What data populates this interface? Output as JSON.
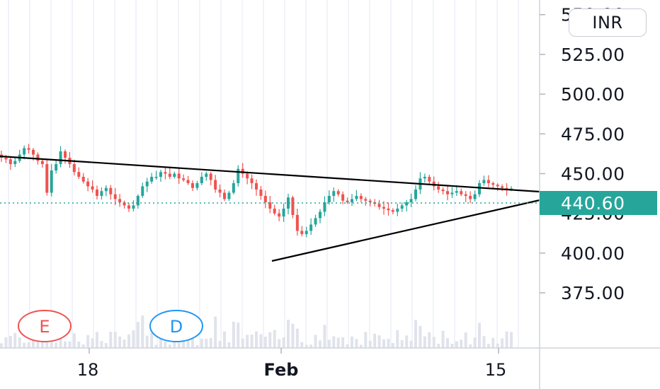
{
  "currency": "INR",
  "colors": {
    "up": "#26a69a",
    "down": "#ef5350",
    "last_price": "#26a69a",
    "trendline": "#000000",
    "event_earnings": "#ef5350",
    "event_dividend": "#2196f3",
    "volume": "#e0e3eb",
    "grid": "#f0f3fa"
  },
  "events": [
    {
      "letter": "E",
      "kind": "earnings",
      "x_label_near": "Jan 12"
    },
    {
      "letter": "D",
      "kind": "dividend",
      "x_label_near": "Jan 23"
    }
  ],
  "chart_data": {
    "type": "candlestick",
    "title": "",
    "ylabel": "",
    "xlabel": "",
    "ylim": [
      355,
      557
    ],
    "y_ticks": [
      "550.00",
      "525.00",
      "500.00",
      "475.00",
      "450.00",
      "425.00",
      "400.00",
      "375.00"
    ],
    "x_ticks": [
      {
        "label": "18",
        "bold": false
      },
      {
        "label": "Feb",
        "bold": true
      },
      {
        "label": "15",
        "bold": false
      }
    ],
    "last_price": "440.60",
    "trendlines": [
      {
        "name": "upper",
        "from": 466,
        "to": 446
      },
      {
        "name": "lower",
        "from": 409,
        "to": 442
      }
    ],
    "close_series": [
      460,
      459,
      456,
      458,
      462,
      466,
      465,
      462,
      458,
      456,
      438,
      452,
      456,
      464,
      460,
      456,
      451,
      448,
      445,
      442,
      440,
      436,
      439,
      441,
      437,
      434,
      432,
      430,
      428,
      430,
      436,
      442,
      445,
      448,
      448,
      451,
      450,
      448,
      450,
      447,
      446,
      444,
      441,
      444,
      448,
      450,
      446,
      440,
      438,
      434,
      438,
      444,
      453,
      450,
      447,
      444,
      440,
      436,
      432,
      428,
      425,
      423,
      428,
      435,
      424,
      414,
      412,
      414,
      418,
      422,
      426,
      432,
      436,
      439,
      437,
      433,
      432,
      434,
      436,
      434,
      433,
      432,
      431,
      429,
      428,
      427,
      426,
      428,
      430,
      432,
      434,
      440,
      447,
      448,
      445,
      442,
      440,
      439,
      437,
      438,
      439,
      437,
      436,
      434,
      437,
      444,
      446,
      444,
      443,
      442,
      441,
      440,
      440.6
    ]
  }
}
